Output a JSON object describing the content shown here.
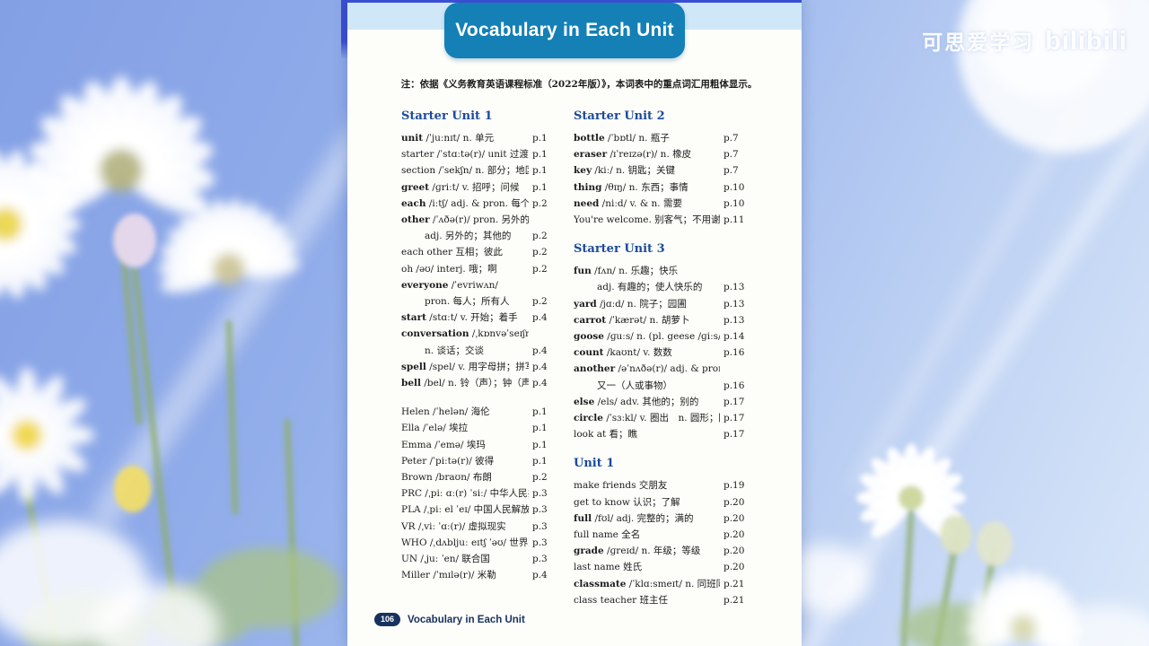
{
  "watermark": {
    "cn": "可思爱学习",
    "logo": "bilibili"
  },
  "page": {
    "banner_title": "Vocabulary in Each Unit",
    "note": "注：依据《义务教育英语课程标准（2022年版）》，本词表中的重点词汇用粗体显示。",
    "footer": {
      "page_number": "106",
      "section_label": "Vocabulary in Each Unit"
    },
    "colors": {
      "banner_bg": "#1480b6",
      "heading_blue": "#1b4a9b",
      "footer_navy": "#17325f",
      "band_blue": "#cfe7f6"
    },
    "columns": [
      {
        "blocks": [
          {
            "heading": "Starter Unit 1",
            "entries": [
              [
                {
                  "b": "unit",
                  "t": " /ˈjuːnɪt/ n. 单元",
                  "p": "p.1"
                }
              ],
              [
                {
                  "b": "",
                  "t": "starter /ˈstɑːtə(r)/ unit 过渡单元",
                  "p": "p.1"
                }
              ],
              [
                {
                  "b": "",
                  "t": "section /ˈsekʃn/ n. 部分；地区",
                  "p": "p.1"
                }
              ],
              [
                {
                  "b": "greet",
                  "t": " /ɡriːt/ v. 招呼；问候",
                  "p": "p.1"
                }
              ],
              [
                {
                  "b": "each",
                  "t": " /iːtʃ/ adj. & pron. 每个；各自",
                  "p": "p.2"
                }
              ],
              [
                {
                  "b": "other",
                  "t": " /ˈʌðə(r)/ pron. 另外的人（或物）",
                  "p": ""
                },
                {
                  "b": "",
                  "t": "adj. 另外的；其他的",
                  "p": "p.2",
                  "i": true
                }
              ],
              [
                {
                  "b": "",
                  "t": "each other 互相；彼此",
                  "p": "p.2"
                }
              ],
              [
                {
                  "b": "",
                  "t": "oh /əʊ/ interj. 哦；啊",
                  "p": "p.2"
                }
              ],
              [
                {
                  "b": "everyone",
                  "t": " /ˈevriwʌn/",
                  "p": ""
                },
                {
                  "b": "",
                  "t": "pron. 每人；所有人",
                  "p": "p.2",
                  "i": true
                }
              ],
              [
                {
                  "b": "start",
                  "t": " /stɑːt/ v. 开始；着手",
                  "p": "p.4"
                }
              ],
              [
                {
                  "b": "conversation",
                  "t": " /ˌkɒnvəˈseɪʃn/",
                  "p": ""
                },
                {
                  "b": "",
                  "t": "n. 谈话；交谈",
                  "p": "p.4",
                  "i": true
                }
              ],
              [
                {
                  "b": "spell",
                  "t": " /spel/ v. 用字母拼；拼写",
                  "p": "p.4"
                }
              ],
              [
                {
                  "b": "bell",
                  "t": " /bel/ n. 铃（声）；钟（声）",
                  "p": "p.4"
                }
              ]
            ]
          },
          {
            "heading": "",
            "entries": [
              [
                {
                  "b": "",
                  "t": "Helen /ˈhelən/ 海伦",
                  "p": "p.1"
                }
              ],
              [
                {
                  "b": "",
                  "t": "Ella /ˈelə/ 埃拉",
                  "p": "p.1"
                }
              ],
              [
                {
                  "b": "",
                  "t": "Emma /ˈemə/ 埃玛",
                  "p": "p.1"
                }
              ],
              [
                {
                  "b": "",
                  "t": "Peter /ˈpiːtə(r)/ 彼得",
                  "p": "p.1"
                }
              ],
              [
                {
                  "b": "",
                  "t": "Brown /braʊn/ 布朗",
                  "p": "p.2"
                }
              ],
              [
                {
                  "b": "",
                  "t": "PRC /ˌpiː ɑː(r) ˈsiː/ 中华人民共和国",
                  "p": "p.3"
                }
              ],
              [
                {
                  "b": "",
                  "t": "PLA /ˌpiː el ˈeɪ/ 中国人民解放军",
                  "p": "p.3"
                }
              ],
              [
                {
                  "b": "",
                  "t": "VR /ˌviː ˈɑː(r)/ 虚拟现实",
                  "p": "p.3"
                }
              ],
              [
                {
                  "b": "",
                  "t": "WHO /ˌdʌbljuː eɪtʃ ˈəʊ/ 世界卫生组织",
                  "p": "p.3"
                }
              ],
              [
                {
                  "b": "",
                  "t": "UN /ˌjuː ˈen/ 联合国",
                  "p": "p.3"
                }
              ],
              [
                {
                  "b": "",
                  "t": "Miller /ˈmɪlə(r)/ 米勒",
                  "p": "p.4"
                }
              ]
            ]
          }
        ]
      },
      {
        "blocks": [
          {
            "heading": "Starter Unit 2",
            "entries": [
              [
                {
                  "b": "bottle",
                  "t": " /ˈbɒtl/ n. 瓶子",
                  "p": "p.7"
                }
              ],
              [
                {
                  "b": "eraser",
                  "t": " /ɪˈreɪzə(r)/ n. 橡皮",
                  "p": "p.7"
                }
              ],
              [
                {
                  "b": "key",
                  "t": " /kiː/ n. 钥匙；关键",
                  "p": "p.7"
                }
              ],
              [
                {
                  "b": "thing",
                  "t": " /θɪŋ/ n. 东西；事情",
                  "p": "p.10"
                }
              ],
              [
                {
                  "b": "need",
                  "t": " /niːd/ v. & n. 需要",
                  "p": "p.10"
                }
              ],
              [
                {
                  "b": "",
                  "t": "You're welcome. 别客气；不用谢。",
                  "p": "p.11"
                }
              ]
            ]
          },
          {
            "heading": "Starter Unit 3",
            "entries": [
              [
                {
                  "b": "fun",
                  "t": " /fʌn/ n. 乐趣；快乐",
                  "p": ""
                },
                {
                  "b": "",
                  "t": "adj. 有趣的；使人快乐的",
                  "p": "p.13",
                  "i": true
                }
              ],
              [
                {
                  "b": "yard",
                  "t": " /jɑːd/ n. 院子；园圃",
                  "p": "p.13"
                }
              ],
              [
                {
                  "b": "carrot",
                  "t": " /ˈkærət/ n. 胡萝卜",
                  "p": "p.13"
                }
              ],
              [
                {
                  "b": "goose",
                  "t": " /ɡuːs/ n. (pl. geese /ɡiːs/) 鹅",
                  "p": "p.14"
                }
              ],
              [
                {
                  "b": "count",
                  "t": " /kaʊnt/ v. 数数",
                  "p": "p.16"
                }
              ],
              [
                {
                  "b": "another",
                  "t": " /əˈnʌðə(r)/ adj. & pron. 另一；",
                  "p": ""
                },
                {
                  "b": "",
                  "t": "又一（人或事物）",
                  "p": "p.16",
                  "i": true
                }
              ],
              [
                {
                  "b": "else",
                  "t": " /els/ adv. 其他的；别的",
                  "p": "p.17"
                }
              ],
              [
                {
                  "b": "circle",
                  "t": " /ˈsɜːkl/ v. 圈出　n. 圆形；圆圈",
                  "p": "p.17"
                }
              ],
              [
                {
                  "b": "",
                  "t": "look at 看；瞧",
                  "p": "p.17"
                }
              ]
            ]
          },
          {
            "heading": "Unit 1",
            "entries": [
              [
                {
                  "b": "",
                  "t": "make friends 交朋友",
                  "p": "p.19"
                }
              ],
              [
                {
                  "b": "",
                  "t": "get to know 认识；了解",
                  "p": "p.20"
                }
              ],
              [
                {
                  "b": "full",
                  "t": " /fʊl/ adj. 完整的；满的",
                  "p": "p.20"
                }
              ],
              [
                {
                  "b": "",
                  "t": "full name 全名",
                  "p": "p.20"
                }
              ],
              [
                {
                  "b": "grade",
                  "t": " /ɡreɪd/ n. 年级；等级",
                  "p": "p.20"
                }
              ],
              [
                {
                  "b": "",
                  "t": "last name 姓氏",
                  "p": "p.20"
                }
              ],
              [
                {
                  "b": "classmate",
                  "t": " /ˈklɑːsmeɪt/ n. 同班同学",
                  "p": "p.21"
                }
              ],
              [
                {
                  "b": "",
                  "t": "class teacher 班主任",
                  "p": "p.21"
                }
              ]
            ]
          }
        ]
      }
    ]
  }
}
